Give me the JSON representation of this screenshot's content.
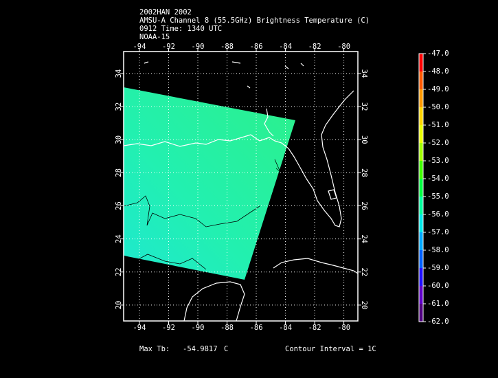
{
  "header": {
    "lines": [
      "2002HAN 2002",
      "AMSU-A Channel 8 (55.5GHz) Brightness Temperature (C)",
      "0912 Time: 1340 UTC",
      "NOAA-15"
    ]
  },
  "map": {
    "xlim": [
      -95.08,
      -79.04
    ],
    "ylim": [
      19.04,
      35.33
    ],
    "xticks": [
      -94,
      -92,
      -90,
      -88,
      -86,
      -84,
      -82,
      -80
    ],
    "yticks": [
      20,
      22,
      24,
      26,
      28,
      30,
      32,
      34
    ],
    "grid": true
  },
  "colorbar": {
    "lim": [
      -62,
      -47
    ],
    "ticks": [
      {
        "value": -47,
        "label": "-47.0"
      },
      {
        "value": -48,
        "label": "-48.0"
      },
      {
        "value": -49,
        "label": "-49.0"
      },
      {
        "value": -50,
        "label": "-50.0"
      },
      {
        "value": -51,
        "label": "-51.0"
      },
      {
        "value": -52,
        "label": "-52.0"
      },
      {
        "value": -53,
        "label": "-53.0"
      },
      {
        "value": -54,
        "label": "-54.0"
      },
      {
        "value": -55,
        "label": "-55.0"
      },
      {
        "value": -56,
        "label": "-56.0"
      },
      {
        "value": -57,
        "label": "-57.0"
      },
      {
        "value": -58,
        "label": "-58.0"
      },
      {
        "value": -59,
        "label": "-59.0"
      },
      {
        "value": -60,
        "label": "-60.0"
      },
      {
        "value": -61,
        "label": "-61.0"
      },
      {
        "value": -62,
        "label": "-62.0"
      }
    ],
    "colors": [
      "#ff0000",
      "#ff5a00",
      "#ff9a00",
      "#ffd400",
      "#e8ff00",
      "#a0ff00",
      "#40ff00",
      "#00ff40",
      "#00ff9c",
      "#00e8e8",
      "#00a8ff",
      "#0060ff",
      "#2010ff",
      "#6000c8",
      "#500080",
      "#200030"
    ]
  },
  "footer": {
    "max_label": "Max Tb:",
    "max_value": -54.9817,
    "max_unit": "C",
    "contour": "Contour Interval = 1C"
  }
}
